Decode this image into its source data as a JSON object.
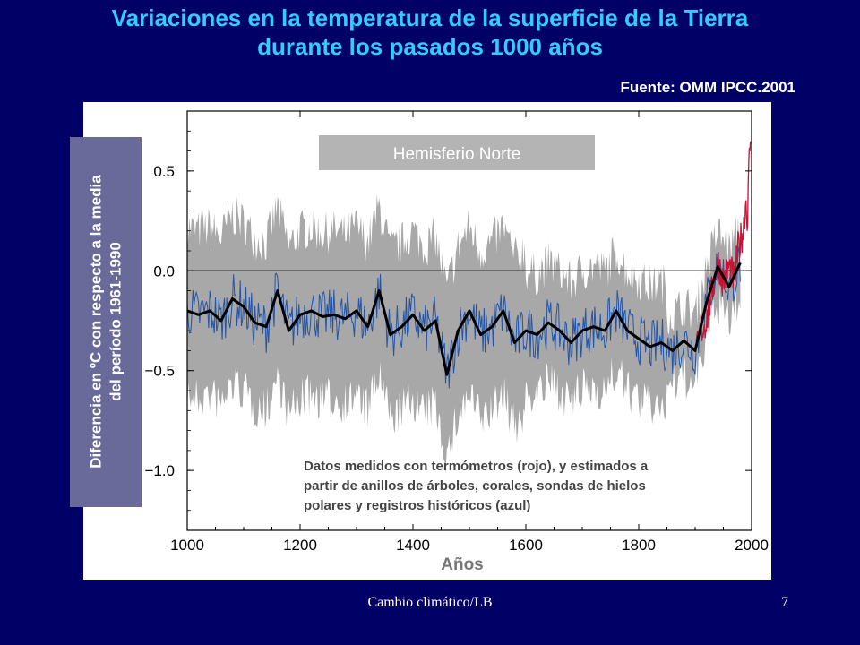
{
  "slide": {
    "title_line1": "Variaciones en la temperatura de la superficie de la Tierra",
    "title_line2": "durante los pasados 1000 años",
    "source": "Fuente: OMM IPCC.2001",
    "footer": "Cambio climático/LB",
    "page_number": "7"
  },
  "colors": {
    "title": "#33CCFF",
    "background": "#000066",
    "uncertainty": "#A8A8A8",
    "proxy": "#2255AA",
    "instrumental": "#CC1133",
    "smoothed": "#000000",
    "panel_label_bg": "#B4B4B4",
    "ylabel_bg": "#6A6A9A"
  },
  "chart_data": {
    "type": "line",
    "panel_label": "Hemisferio Norte",
    "xlabel": "Años",
    "ylabel_line1": "Diferencia en ºC con respecto a la media",
    "ylabel_line2": "del período 1961-1990",
    "xlim": [
      1000,
      2000
    ],
    "ylim": [
      -1.3,
      0.8
    ],
    "x_ticks": [
      1000,
      1200,
      1400,
      1600,
      1800,
      2000
    ],
    "x_tick_labels": [
      "1000",
      "1200",
      "1400",
      "1600",
      "1800",
      "2000"
    ],
    "y_ticks": [
      0.5,
      0.0,
      -0.5,
      -1.0
    ],
    "y_tick_labels": [
      "0.5",
      "0.0",
      "−0.5",
      "−1.0"
    ],
    "annotation_lines": [
      "Datos medidos con termómetros (rojo), y estimados a",
      "partir de anillos de árboles, corales, sondas de hielos",
      "polares y registros históricos (azul)"
    ],
    "series": [
      {
        "role": "smoothed-reconstruction",
        "x": [
          1000,
          1020,
          1040,
          1060,
          1080,
          1100,
          1120,
          1140,
          1160,
          1180,
          1200,
          1220,
          1240,
          1260,
          1280,
          1300,
          1320,
          1340,
          1360,
          1380,
          1400,
          1420,
          1440,
          1460,
          1480,
          1500,
          1520,
          1540,
          1560,
          1580,
          1600,
          1620,
          1640,
          1660,
          1680,
          1700,
          1720,
          1740,
          1760,
          1780,
          1800,
          1820,
          1840,
          1860,
          1880,
          1900,
          1920,
          1940,
          1960,
          1980
        ],
        "y": [
          -0.2,
          -0.22,
          -0.2,
          -0.25,
          -0.14,
          -0.18,
          -0.26,
          -0.28,
          -0.1,
          -0.3,
          -0.22,
          -0.2,
          -0.23,
          -0.22,
          -0.24,
          -0.2,
          -0.28,
          -0.1,
          -0.32,
          -0.28,
          -0.22,
          -0.3,
          -0.25,
          -0.52,
          -0.3,
          -0.2,
          -0.32,
          -0.28,
          -0.2,
          -0.36,
          -0.3,
          -0.32,
          -0.26,
          -0.3,
          -0.36,
          -0.3,
          -0.28,
          -0.3,
          -0.2,
          -0.3,
          -0.34,
          -0.38,
          -0.36,
          -0.4,
          -0.35,
          -0.4,
          -0.16,
          0.02,
          -0.08,
          0.04
        ]
      },
      {
        "role": "instrumental",
        "x": [
          1902,
          1910,
          1920,
          1930,
          1940,
          1950,
          1960,
          1970,
          1975,
          1980,
          1985,
          1990,
          1993,
          1995,
          1998
        ],
        "y": [
          -0.42,
          -0.3,
          -0.25,
          -0.1,
          0.05,
          -0.05,
          0.02,
          -0.05,
          0.1,
          0.15,
          0.2,
          0.35,
          0.25,
          0.5,
          0.68
        ]
      }
    ]
  }
}
